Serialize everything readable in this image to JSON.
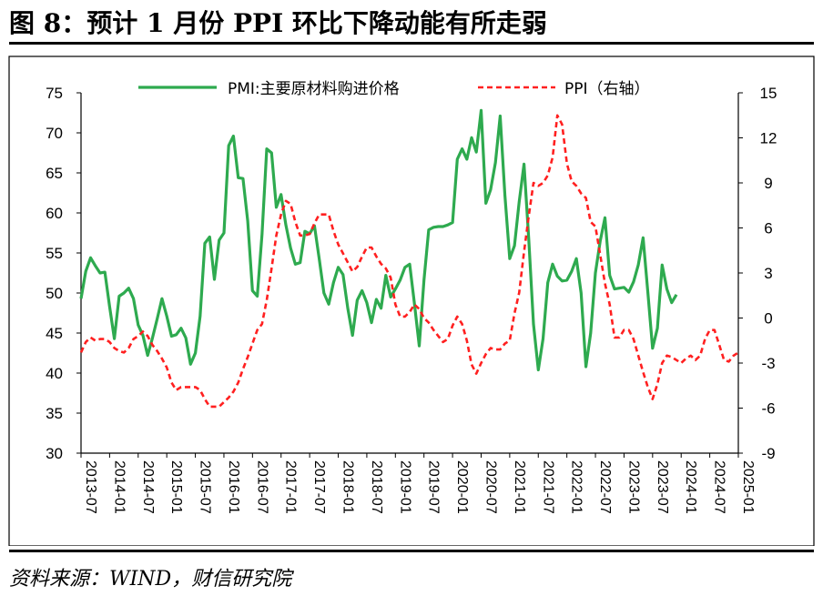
{
  "figure": {
    "title": "图 8：预计 1 月份 PPI 环比下降动能有所走弱",
    "source": "资料来源：WIND，财信研究院"
  },
  "chart_data": {
    "type": "line",
    "dual_axis": true,
    "x_labels": [
      "2013-07",
      "2014-01",
      "2014-07",
      "2015-01",
      "2015-07",
      "2016-01",
      "2016-07",
      "2017-01",
      "2017-07",
      "2018-01",
      "2018-07",
      "2019-01",
      "2019-07",
      "2020-01",
      "2020-07",
      "2021-01",
      "2021-07",
      "2022-01",
      "2022-07",
      "2023-01",
      "2023-07",
      "2024-01",
      "2024-07",
      "2025-01"
    ],
    "y_left": {
      "min": 30,
      "max": 75,
      "ticks": [
        30,
        35,
        40,
        45,
        50,
        55,
        60,
        65,
        70,
        75
      ]
    },
    "y_right": {
      "min": -9,
      "max": 15,
      "ticks": [
        -9,
        -6,
        -3,
        0,
        3,
        6,
        9,
        12,
        15
      ]
    },
    "legend": {
      "position": "top",
      "entries": [
        "PMI:主要原材料购进价格",
        "PPI（右轴）"
      ]
    },
    "grid": false,
    "series": [
      {
        "name": "PMI:主要原材料购进价格",
        "axis": "left",
        "color": "#2eaa4f",
        "style": "solid",
        "start": "2013-07",
        "values": [
          49.3,
          52.7,
          54.4,
          53.4,
          52.5,
          52.6,
          48.3,
          44.3,
          49.6,
          50.0,
          50.6,
          49.3,
          46.0,
          44.7,
          42.2,
          44.4,
          46.8,
          49.3,
          47.1,
          44.6,
          44.8,
          45.6,
          44.4,
          41.1,
          42.5,
          47.1,
          56.2,
          57.0,
          51.7,
          56.6,
          57.5,
          68.4,
          69.6,
          64.4,
          64.3,
          59.0,
          50.3,
          49.6,
          57.3,
          68.0,
          67.5,
          60.7,
          62.3,
          58.5,
          55.6,
          53.6,
          53.8,
          57.7,
          57.4,
          58.4,
          54.3,
          50.0,
          48.6,
          51.3,
          53.2,
          52.3,
          48.1,
          44.7,
          49.1,
          50.3,
          48.8,
          46.3,
          49.2,
          48.1,
          52.2,
          49.5,
          50.5,
          51.6,
          53.2,
          53.6,
          48.7,
          43.4,
          51.6,
          57.9,
          58.2,
          58.3,
          58.3,
          58.5,
          58.8,
          66.7,
          68.0,
          66.7,
          69.4,
          67.6,
          72.8,
          61.2,
          62.9,
          66.3,
          72.1,
          62.2,
          54.3,
          55.9,
          61.4,
          66.1,
          56.7,
          46.1,
          40.4,
          44.3,
          51.3,
          53.6,
          52.1,
          51.5,
          51.6,
          52.7,
          54.3,
          50.0,
          40.8,
          45.0,
          52.5,
          56.5,
          59.4,
          52.2,
          50.5,
          50.6,
          50.7,
          50.1,
          51.4,
          53.5,
          56.9,
          50.1,
          43.1,
          45.6,
          53.5,
          50.5,
          48.8,
          49.8
        ]
      },
      {
        "name": "PPI（右轴）",
        "axis": "right",
        "color": "#ff2020",
        "style": "dashed",
        "start": "2013-07",
        "values": [
          -2.3,
          -1.6,
          -1.3,
          -1.5,
          -1.4,
          -1.4,
          -1.6,
          -2.0,
          -2.2,
          -2.3,
          -2.0,
          -1.4,
          -1.2,
          -0.9,
          -1.2,
          -1.8,
          -2.2,
          -2.7,
          -3.3,
          -4.3,
          -4.8,
          -4.6,
          -4.6,
          -4.6,
          -4.6,
          -4.8,
          -5.4,
          -5.9,
          -5.9,
          -5.9,
          -5.6,
          -5.3,
          -4.9,
          -4.3,
          -3.4,
          -2.6,
          -1.7,
          -0.8,
          -0.4,
          1.2,
          3.3,
          5.5,
          6.9,
          7.8,
          7.6,
          6.4,
          5.5,
          5.5,
          5.6,
          6.3,
          6.9,
          6.9,
          6.9,
          5.8,
          4.9,
          4.3,
          3.7,
          3.1,
          3.4,
          4.1,
          4.7,
          4.7,
          4.1,
          3.6,
          3.3,
          2.7,
          0.9,
          0.1,
          0.1,
          0.4,
          0.9,
          0.6,
          0.0,
          -0.3,
          -0.8,
          -1.2,
          -1.6,
          -1.4,
          -0.5,
          0.1,
          -0.4,
          -1.5,
          -3.1,
          -3.7,
          -3.0,
          -2.4,
          -2.0,
          -2.1,
          -2.1,
          -1.7,
          -1.5,
          0.3,
          1.7,
          4.4,
          6.8,
          9.0,
          8.8,
          9.0,
          9.5,
          10.7,
          13.5,
          12.9,
          10.3,
          9.1,
          8.8,
          8.3,
          8.0,
          6.4,
          6.1,
          4.2,
          2.3,
          0.9,
          -1.3,
          -1.3,
          -0.8,
          -0.8,
          -1.4,
          -2.5,
          -3.6,
          -4.6,
          -5.4,
          -4.4,
          -3.0,
          -2.5,
          -2.6,
          -2.8,
          -3.0,
          -2.7,
          -2.5,
          -2.8,
          -2.5,
          -1.4,
          -0.8,
          -0.8,
          -1.8,
          -2.8,
          -2.9,
          -2.5,
          -2.3
        ]
      }
    ]
  }
}
